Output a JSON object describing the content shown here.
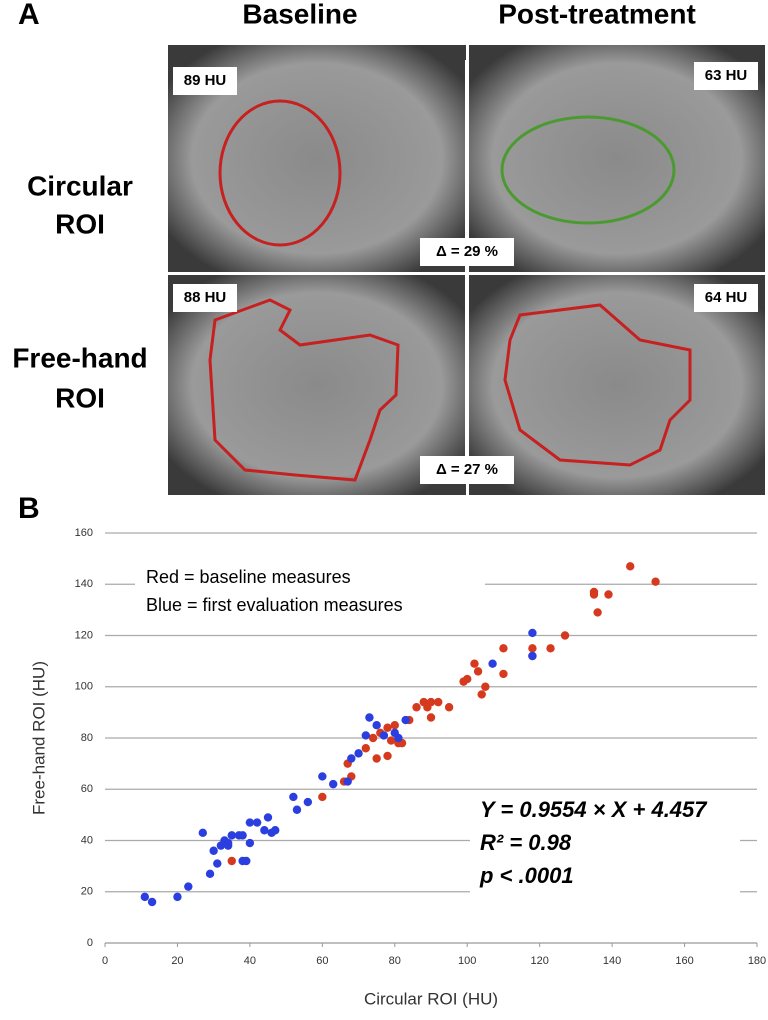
{
  "panel_a": {
    "label": "A",
    "columns": [
      "Baseline",
      "Post-treatment"
    ],
    "rows": [
      [
        "Circular",
        "ROI"
      ],
      [
        "Free-hand",
        "ROI"
      ]
    ],
    "hu": [
      [
        "89 HU",
        "63 HU"
      ],
      [
        "88 HU",
        "64 HU"
      ]
    ],
    "deltas": [
      "Δ = 29 %",
      "Δ = 27 %"
    ]
  },
  "chart_data": {
    "type": "scatter",
    "panel_label": "B",
    "x_label": "Circular ROI (HU)",
    "y_label": "Free-hand ROI (HU)",
    "xlim": [
      0,
      180
    ],
    "xticks": [
      0,
      20,
      40,
      60,
      80,
      100,
      120,
      140,
      160,
      180
    ],
    "ylim": [
      0,
      160
    ],
    "yticks": [
      0,
      20,
      40,
      60,
      80,
      100,
      120,
      140,
      160
    ],
    "grid": true,
    "annotations": [
      "Y = 0.9554 × X + 4.457",
      "R² = 0.98",
      "p < .0001"
    ],
    "series": [
      {
        "name": "Red = baseline measures",
        "color": "#d63a1e",
        "x": [
          35,
          60,
          66,
          67,
          68,
          72,
          74,
          75,
          76,
          78,
          78,
          79,
          80,
          81,
          82,
          84,
          86,
          88,
          89,
          90,
          90,
          92,
          95,
          99,
          100,
          102,
          103,
          104,
          105,
          110,
          110,
          118,
          118,
          123,
          127,
          135,
          135,
          136,
          139,
          145,
          152
        ],
        "values": [
          32,
          57,
          63,
          70,
          65,
          76,
          80,
          72,
          82,
          84,
          73,
          79,
          85,
          78,
          78,
          87,
          92,
          94,
          92,
          94,
          88,
          94,
          92,
          102,
          103,
          109,
          106,
          97,
          100,
          115,
          105,
          115,
          112,
          115,
          120,
          137,
          136,
          129,
          136,
          147,
          141
        ]
      },
      {
        "name": "Blue  = first evaluation measures",
        "color": "#2b3fe0",
        "x": [
          11,
          13,
          20,
          23,
          27,
          29,
          30,
          31,
          32,
          33,
          34,
          35,
          37,
          38,
          39,
          40,
          40,
          42,
          44,
          45,
          46,
          47,
          52,
          53,
          56,
          60,
          63,
          67,
          68,
          70,
          72,
          73,
          75,
          77,
          80,
          81,
          83,
          107,
          118,
          118,
          34,
          38
        ],
        "values": [
          18,
          16,
          18,
          22,
          43,
          27,
          36,
          31,
          38,
          40,
          38,
          42,
          42,
          32,
          32,
          39,
          47,
          47,
          44,
          49,
          43,
          44,
          57,
          52,
          55,
          65,
          62,
          63,
          72,
          74,
          81,
          88,
          85,
          81,
          82,
          80,
          87,
          109,
          121,
          112,
          39,
          42
        ]
      }
    ]
  }
}
